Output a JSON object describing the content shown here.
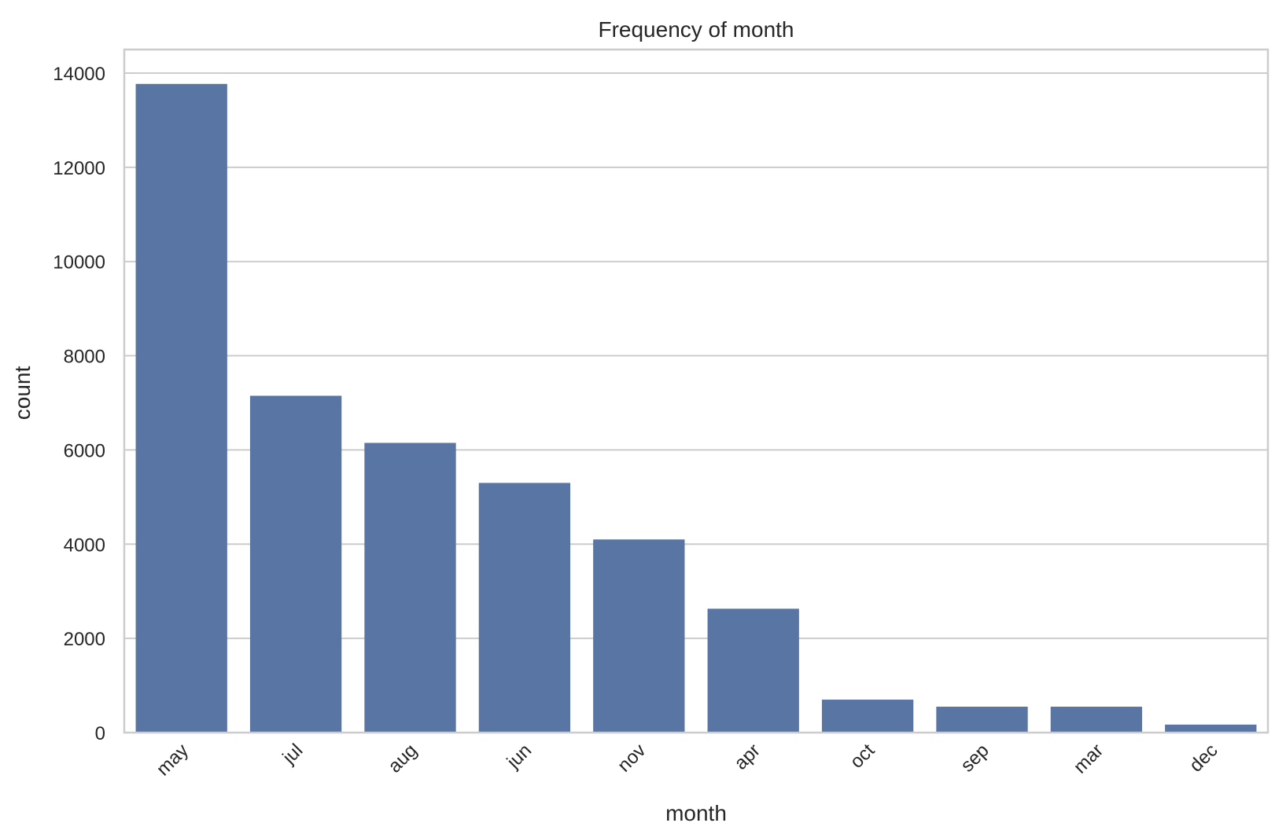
{
  "chart_data": {
    "type": "bar",
    "title": "Frequency of month",
    "xlabel": "month",
    "ylabel": "count",
    "categories": [
      "may",
      "jul",
      "aug",
      "jun",
      "nov",
      "apr",
      "oct",
      "sep",
      "mar",
      "dec"
    ],
    "values": [
      13770,
      7150,
      6150,
      5300,
      4100,
      2630,
      700,
      550,
      550,
      170
    ],
    "yticks": [
      0,
      2000,
      4000,
      6000,
      8000,
      10000,
      12000,
      14000
    ],
    "ylim": [
      0,
      14500
    ],
    "grid": "horizontal",
    "bar_color": "#5975a4",
    "tick_label_rotation": 45
  }
}
